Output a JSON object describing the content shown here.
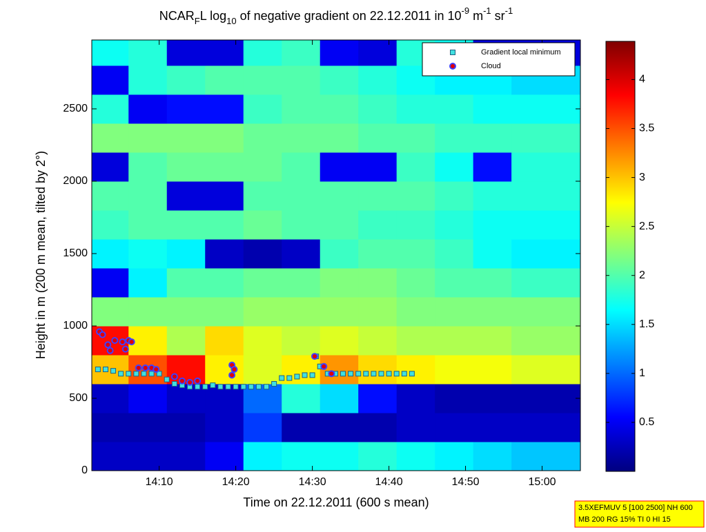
{
  "chart_data": {
    "type": "heatmap",
    "title_parts": [
      {
        "text": "NCAR",
        "pos": "base"
      },
      {
        "text": "F",
        "pos": "sub"
      },
      {
        "text": "L log",
        "pos": "base"
      },
      {
        "text": "10",
        "pos": "sub"
      },
      {
        "text": " of negative gradient on 22.12.2011 in 10",
        "pos": "base"
      },
      {
        "text": "-9",
        "pos": "sup"
      },
      {
        "text": " m",
        "pos": "base"
      },
      {
        "text": "-1",
        "pos": "sup"
      },
      {
        "text": " sr",
        "pos": "base"
      },
      {
        "text": "-1",
        "pos": "sup"
      }
    ],
    "xlabel": "Time on 22.12.2011 (600 s mean)",
    "ylabel": "Height in m (200 m mean, tilted by 2°)",
    "xlim": [
      841.2,
      905
    ],
    "xticks": [
      {
        "value": 850,
        "label": "14:10"
      },
      {
        "value": 860,
        "label": "14:20"
      },
      {
        "value": 870,
        "label": "14:30"
      },
      {
        "value": 880,
        "label": "14:40"
      },
      {
        "value": 890,
        "label": "14:50"
      },
      {
        "value": 900,
        "label": "15:00"
      }
    ],
    "ylim": [
      0,
      2976
    ],
    "yticks": [
      0,
      500,
      1000,
      1500,
      2000,
      2500
    ],
    "colormap": "jet",
    "clim": [
      0,
      4.39
    ],
    "cticks": [
      0.5,
      1,
      1.5,
      2,
      2.5,
      3,
      3.5,
      4
    ],
    "x_edges": [
      841.2,
      846,
      851,
      856,
      861,
      866,
      871,
      876,
      881,
      886,
      891,
      896,
      905
    ],
    "y_edges": [
      0,
      200,
      400,
      600,
      800,
      1000,
      1200,
      1400,
      1600,
      1800,
      2000,
      2200,
      2400,
      2600,
      2800,
      2976
    ],
    "z": [
      [
        0.3,
        0.3,
        0.3,
        0.5,
        1.6,
        1.7,
        1.7,
        1.8,
        1.7,
        1.6,
        1.5,
        1.4
      ],
      [
        0.2,
        0.2,
        0.2,
        0.3,
        0.8,
        0.2,
        0.2,
        0.2,
        0.3,
        0.3,
        0.3,
        0.3
      ],
      [
        0.3,
        0.5,
        0.3,
        0.3,
        1.0,
        1.8,
        1.5,
        0.6,
        0.3,
        0.2,
        0.2,
        0.2
      ],
      [
        3.0,
        3.5,
        3.8,
        2.8,
        2.6,
        2.8,
        3.2,
        2.9,
        2.8,
        2.7,
        2.7,
        2.6
      ],
      [
        3.8,
        2.8,
        2.4,
        2.9,
        2.6,
        2.5,
        2.6,
        2.5,
        2.4,
        2.4,
        2.4,
        2.3
      ],
      [
        2.2,
        2.2,
        2.2,
        2.2,
        2.3,
        2.3,
        2.3,
        2.3,
        2.2,
        2.2,
        2.2,
        2.2
      ],
      [
        0.5,
        1.6,
        2.0,
        2.0,
        2.1,
        2.1,
        2.2,
        2.2,
        2.1,
        2.0,
        2.0,
        1.9
      ],
      [
        1.6,
        1.7,
        1.6,
        0.3,
        0.2,
        0.3,
        1.9,
        2.0,
        2.0,
        1.9,
        1.7,
        1.6
      ],
      [
        1.9,
        2.0,
        2.0,
        2.0,
        2.1,
        2.0,
        2.0,
        1.9,
        1.9,
        1.8,
        1.7,
        1.7
      ],
      [
        2.0,
        2.0,
        0.4,
        0.4,
        2.0,
        2.0,
        2.0,
        2.0,
        2.0,
        1.9,
        1.8,
        1.8
      ],
      [
        0.4,
        2.0,
        2.1,
        2.1,
        2.1,
        2.0,
        0.5,
        0.5,
        1.9,
        1.7,
        0.6,
        1.8
      ],
      [
        2.2,
        2.2,
        2.2,
        2.2,
        2.1,
        2.1,
        2.1,
        2.0,
        2.0,
        1.9,
        1.9,
        1.9
      ],
      [
        1.8,
        0.5,
        0.6,
        0.6,
        1.9,
        2.0,
        2.0,
        1.9,
        1.8,
        1.8,
        1.7,
        1.7
      ],
      [
        0.5,
        1.8,
        1.9,
        2.0,
        2.0,
        2.0,
        1.9,
        1.8,
        1.7,
        1.6,
        1.6,
        1.5
      ],
      [
        1.7,
        1.8,
        0.4,
        0.4,
        1.8,
        1.9,
        0.5,
        0.4,
        1.8,
        1.7,
        0.4,
        0.4
      ]
    ],
    "legend": "upper right",
    "series": [
      {
        "name": "Gradient local minimum",
        "marker": "square",
        "color": "#40e0e0",
        "edgecolor": "#206080",
        "x": [
          842,
          843,
          844,
          845,
          846,
          847,
          848,
          849,
          850,
          851,
          852,
          853,
          854,
          855,
          856,
          857,
          858,
          859,
          860,
          861,
          862,
          863,
          864,
          865,
          866,
          867,
          868,
          869,
          870,
          870.5,
          871,
          872,
          873,
          874,
          875,
          876,
          877,
          878,
          879,
          880,
          881,
          882,
          883
        ],
        "y": [
          700,
          700,
          690,
          670,
          670,
          670,
          670,
          670,
          670,
          630,
          600,
          590,
          580,
          580,
          580,
          590,
          580,
          580,
          580,
          580,
          580,
          580,
          580,
          600,
          640,
          640,
          650,
          660,
          660,
          790,
          720,
          670,
          670,
          670,
          670,
          670,
          670,
          670,
          670,
          670,
          670,
          670,
          670
        ]
      },
      {
        "name": "Cloud",
        "marker": "circle",
        "color": "#e00000",
        "edgecolor": "#4040ff",
        "x": [
          842.2,
          842.6,
          843.3,
          843.6,
          844.2,
          845.2,
          845.6,
          846.0,
          846.4,
          847.3,
          848.2,
          849.0,
          849.6,
          852.0,
          853.0,
          854.0,
          855.0,
          859.5,
          859.8,
          859.5,
          870.3,
          871.5,
          872.5
        ],
        "y": [
          960,
          940,
          870,
          830,
          900,
          890,
          840,
          900,
          890,
          710,
          710,
          710,
          700,
          650,
          620,
          610,
          620,
          730,
          700,
          660,
          790,
          720,
          670
        ]
      }
    ],
    "annotation": [
      "3.5XEFMUV 5 [100 2500] NH 600",
      "MB 200 RG 15% TI 0 HI 15"
    ]
  }
}
